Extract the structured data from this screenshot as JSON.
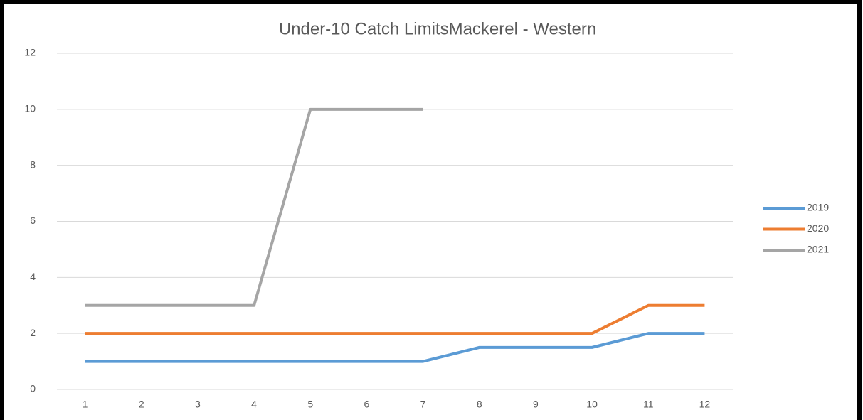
{
  "chart_data": {
    "type": "line",
    "title": "Under-10 Catch LimitsMackerel - Western",
    "categories": [
      "1",
      "2",
      "3",
      "4",
      "5",
      "6",
      "7",
      "8",
      "9",
      "10",
      "11",
      "12"
    ],
    "series": [
      {
        "name": "2019",
        "color": "#5b9bd5",
        "values": [
          1,
          1,
          1,
          1,
          1,
          1,
          1,
          1.5,
          1.5,
          1.5,
          2,
          2
        ]
      },
      {
        "name": "2020",
        "color": "#ed7d31",
        "values": [
          2,
          2,
          2,
          2,
          2,
          2,
          2,
          2,
          2,
          2,
          3,
          3
        ]
      },
      {
        "name": "2021",
        "color": "#a5a5a5",
        "values": [
          3,
          3,
          3,
          3,
          10,
          10,
          10,
          null,
          null,
          null,
          null,
          null
        ]
      }
    ],
    "ylim": [
      0,
      12
    ],
    "yticks": [
      0,
      2,
      4,
      6,
      8,
      10,
      12
    ],
    "grid": true,
    "legend": "right"
  }
}
